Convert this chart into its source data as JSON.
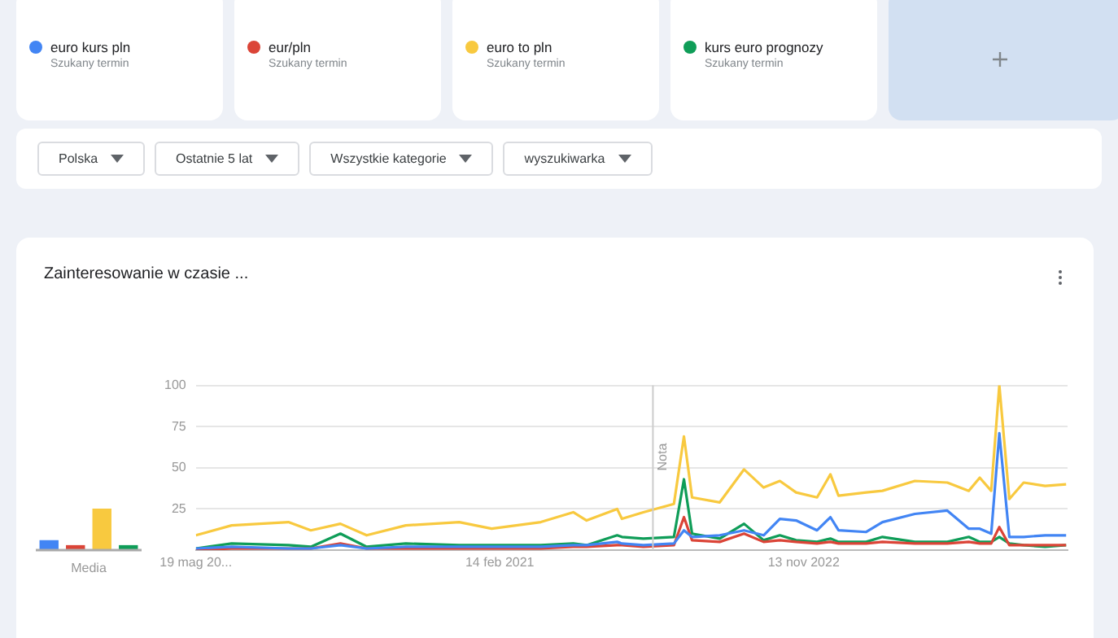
{
  "chart_data": [
    {
      "type": "line",
      "title": "Zainteresowanie w czasie ...",
      "annotations": [
        "Szukany termin",
        "Szukany termin",
        "Szukany termin",
        "Szukany termin",
        "Polska",
        "Ostatnie 5 lat",
        "Wszystkie kategorie",
        "wyszukiwarka"
      ],
      "x": [
        "2019-05-19",
        "2019-08-02",
        "2019-11-29",
        "2020-01-15",
        "2020-03-17",
        "2020-05-11",
        "2020-08-01",
        "2020-11-21",
        "2021-01-28",
        "2021-05-11",
        "2021-07-18",
        "2021-08-15",
        "2021-10-18",
        "2021-10-28",
        "2021-12-12",
        "2022-02-14",
        "2022-03-07",
        "2022-03-24",
        "2022-05-21",
        "2022-07-11",
        "2022-08-21",
        "2022-09-24",
        "2022-10-28",
        "2022-12-11",
        "2023-01-08",
        "2023-01-25",
        "2023-03-24",
        "2023-04-27",
        "2023-07-04",
        "2023-09-10",
        "2023-10-25",
        "2023-11-17",
        "2023-12-11",
        "2023-12-28",
        "2024-01-18",
        "2024-02-17",
        "2024-04-02",
        "2024-05-16"
      ],
      "series": [
        {
          "name": "euro kurs pln",
          "color": "#4285f4",
          "values": [
            1,
            2,
            1,
            1,
            3,
            1,
            2,
            2,
            2,
            2,
            3,
            3,
            5,
            4,
            3,
            4,
            12,
            8,
            9,
            12,
            9,
            19,
            18,
            12,
            20,
            12,
            11,
            17,
            22,
            24,
            13,
            13,
            10,
            71,
            8,
            8,
            9,
            9
          ]
        },
        {
          "name": "eur/pln",
          "color": "#db4437",
          "values": [
            0,
            1,
            1,
            1,
            4,
            1,
            1,
            1,
            1,
            1,
            2,
            2,
            3,
            3,
            2,
            3,
            20,
            6,
            5,
            10,
            5,
            6,
            5,
            4,
            5,
            4,
            4,
            5,
            4,
            4,
            5,
            4,
            4,
            14,
            3,
            3,
            3,
            3
          ]
        },
        {
          "name": "euro to pln",
          "color": "#f8c93f",
          "values": [
            9,
            15,
            17,
            12,
            16,
            9,
            15,
            17,
            13,
            17,
            23,
            18,
            25,
            19,
            23,
            28,
            69,
            32,
            29,
            49,
            38,
            42,
            35,
            32,
            46,
            33,
            35,
            36,
            42,
            41,
            36,
            44,
            36,
            100,
            31,
            41,
            39,
            40
          ]
        },
        {
          "name": "kurs euro prognozy",
          "color": "#0f9d58",
          "values": [
            1,
            4,
            3,
            2,
            10,
            2,
            4,
            3,
            3,
            3,
            4,
            3,
            9,
            8,
            7,
            8,
            43,
            10,
            7,
            16,
            6,
            9,
            6,
            5,
            7,
            5,
            5,
            8,
            5,
            5,
            8,
            5,
            5,
            8,
            4,
            3,
            2,
            3
          ]
        }
      ],
      "xlim": [
        "2019-05-19",
        "2024-05-19"
      ],
      "xticks": [
        {
          "value": "2019-05-19",
          "label": "19 mag 20..."
        },
        {
          "value": "2021-02-14",
          "label": "14 feb 2021"
        },
        {
          "value": "2022-11-13",
          "label": "13 nov 2022"
        }
      ],
      "ylim": [
        0,
        100
      ],
      "yticks": [
        25,
        50,
        75,
        100
      ],
      "ref_lines": [
        {
          "axis": "x",
          "value": "2022-01-01",
          "label": "Nota",
          "color": "#cccccc"
        }
      ],
      "grid": "y",
      "legend": "top"
    },
    {
      "type": "bar",
      "xlabel": "Media",
      "categories": [
        null,
        null,
        null,
        null
      ],
      "values": [
        6,
        3,
        25,
        3
      ],
      "colors": [
        "#4285f4",
        "#db4437",
        "#f8c93f",
        "#0f9d58"
      ],
      "ylim": [
        0,
        100
      ],
      "ref_lines": [
        {
          "axis": "y",
          "value": 0,
          "color": "#aaaaaa"
        }
      ]
    }
  ]
}
